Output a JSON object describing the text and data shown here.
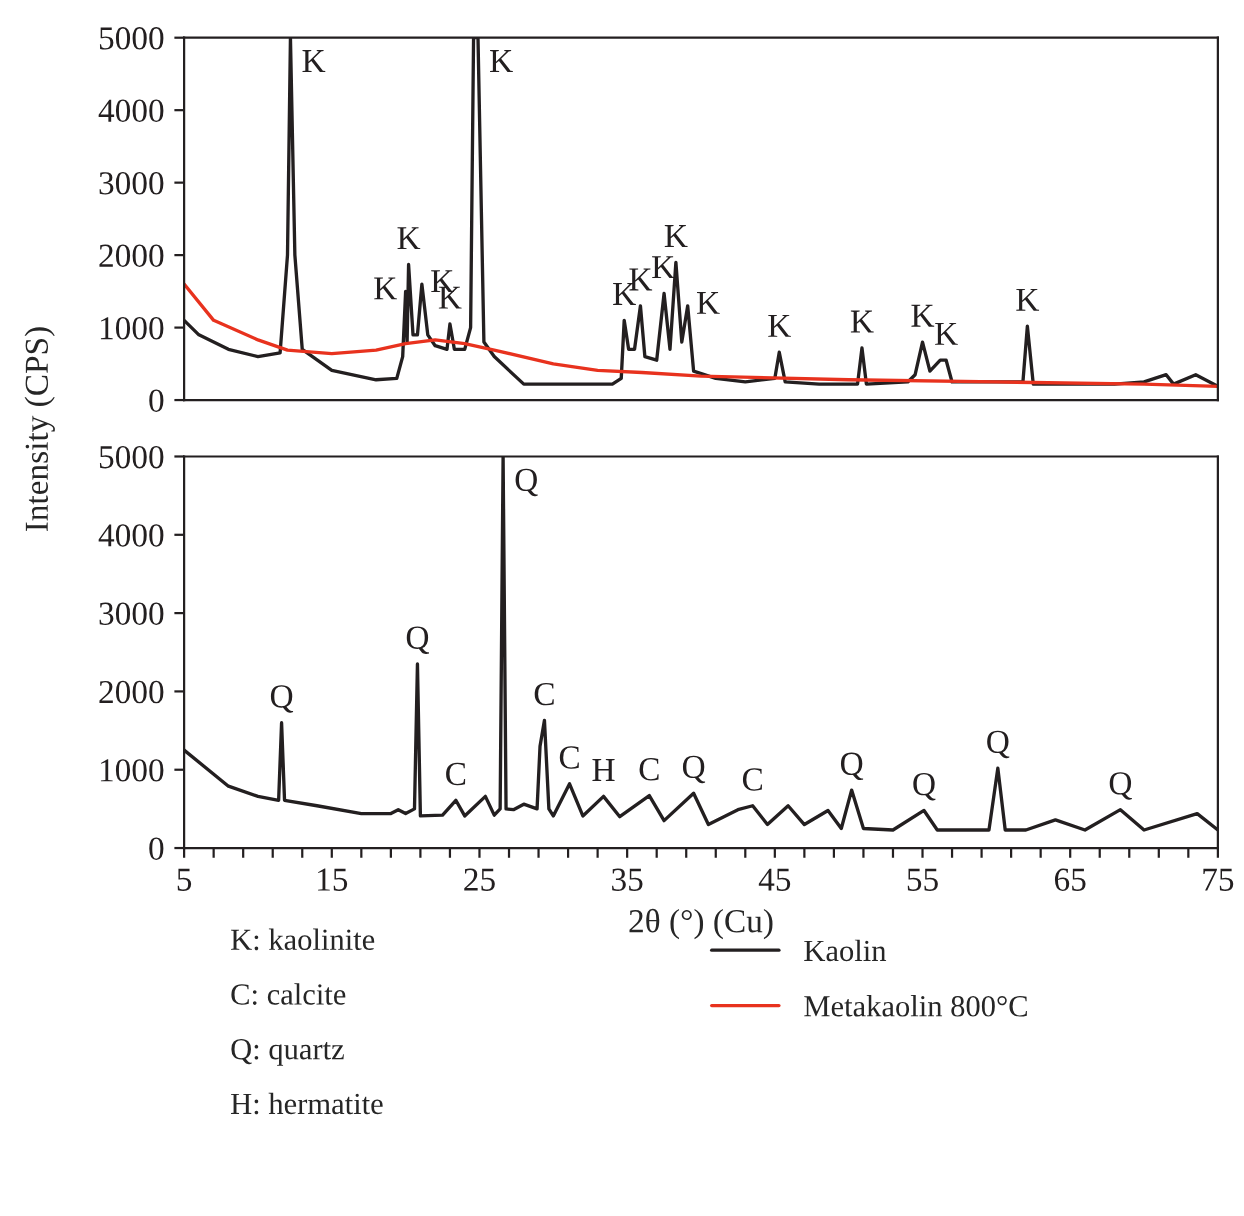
{
  "chart_data": [
    {
      "type": "line",
      "ylim": [
        0,
        5000
      ],
      "yticks": [
        0,
        1000,
        2000,
        3000,
        4000,
        5000
      ],
      "xlim": [
        5,
        75
      ],
      "tick_labels": "y",
      "legend": "bottom",
      "grid": false,
      "marker": "none",
      "line_style": "solid",
      "series": [
        {
          "name": "Kaolin",
          "color": "#231f20",
          "x": [
            5,
            6,
            8,
            10,
            11.5,
            12.0,
            12.2,
            12.5,
            13,
            15,
            18,
            19.4,
            19.8,
            20.0,
            20.1,
            20.2,
            20.5,
            20.8,
            21.1,
            21.5,
            22,
            22.8,
            23.0,
            23.3,
            24.0,
            24.4,
            24.6,
            24.9,
            25.3,
            26,
            28,
            30,
            32,
            34,
            34.6,
            34.8,
            35.1,
            35.5,
            35.9,
            36.2,
            37,
            37.5,
            37.9,
            38.3,
            38.7,
            39.1,
            39.5,
            41,
            43,
            45.0,
            45.3,
            45.7,
            48,
            50.6,
            50.9,
            51.2,
            54,
            54.5,
            55.0,
            55.5,
            56.2,
            56.6,
            57,
            60,
            61.8,
            62.1,
            62.5,
            65,
            68,
            70,
            71.5,
            72,
            73.5,
            75
          ],
          "values": [
            1100,
            900,
            700,
            600,
            650,
            2000,
            5000,
            2000,
            700,
            410,
            280,
            300,
            600,
            1500,
            800,
            1870,
            900,
            900,
            1600,
            900,
            750,
            700,
            1050,
            700,
            700,
            1000,
            5000,
            5000,
            800,
            600,
            220,
            220,
            220,
            220,
            300,
            1100,
            700,
            700,
            1300,
            600,
            550,
            1470,
            700,
            1900,
            800,
            1300,
            400,
            300,
            250,
            300,
            660,
            250,
            220,
            220,
            720,
            220,
            250,
            350,
            800,
            400,
            550,
            550,
            250,
            250,
            250,
            1020,
            220,
            220,
            220,
            250,
            350,
            220,
            350,
            190
          ]
        },
        {
          "name": "Metakaolin 800°C",
          "color": "#e8321e",
          "x": [
            5,
            7,
            10,
            12,
            15,
            18,
            20,
            22,
            24,
            26,
            30,
            33,
            36,
            40,
            50,
            60,
            70,
            75
          ],
          "values": [
            1600,
            1100,
            830,
            690,
            640,
            690,
            780,
            830,
            780,
            690,
            500,
            410,
            380,
            330,
            280,
            250,
            220,
            190
          ]
        }
      ],
      "annotations": [
        {
          "text": "K",
          "x": 12.2,
          "y": 5000
        },
        {
          "text": "K",
          "x": 24.9,
          "y": 5000
        },
        {
          "text": "K",
          "x": 20.0,
          "y": 1500
        },
        {
          "text": "K",
          "x": 20.2,
          "y": 1870
        },
        {
          "text": "K",
          "x": 21.1,
          "y": 1600
        },
        {
          "text": "K",
          "x": 23.0,
          "y": 1050
        },
        {
          "text": "K",
          "x": 34.8,
          "y": 1100
        },
        {
          "text": "K",
          "x": 35.9,
          "y": 1300
        },
        {
          "text": "K",
          "x": 37.5,
          "y": 1470
        },
        {
          "text": "K",
          "x": 38.3,
          "y": 1900
        },
        {
          "text": "K",
          "x": 39.1,
          "y": 1300
        },
        {
          "text": "K",
          "x": 45.3,
          "y": 660
        },
        {
          "text": "K",
          "x": 50.9,
          "y": 720
        },
        {
          "text": "K",
          "x": 55.0,
          "y": 800
        },
        {
          "text": "K",
          "x": 56.6,
          "y": 550
        },
        {
          "text": "K",
          "x": 62.1,
          "y": 1020
        }
      ]
    },
    {
      "type": "line",
      "ylim": [
        0,
        5000
      ],
      "yticks": [
        0,
        1000,
        2000,
        3000,
        4000,
        5000
      ],
      "xlim": [
        5,
        75
      ],
      "ylabel": "Intensity (CPS)",
      "xlabel": "2θ (°) (Cu)",
      "grid": false,
      "marker": "none",
      "line_style": "solid",
      "xticks": [
        5,
        {
          "value": 7,
          "label": null
        },
        {
          "value": 9,
          "label": null
        },
        {
          "value": 11,
          "label": null
        },
        {
          "value": 13,
          "label": null
        },
        15,
        {
          "value": 17,
          "label": null
        },
        {
          "value": 19,
          "label": null
        },
        {
          "value": 21,
          "label": null
        },
        {
          "value": 23,
          "label": null
        },
        25,
        {
          "value": 27,
          "label": null
        },
        {
          "value": 29,
          "label": null
        },
        {
          "value": 31,
          "label": null
        },
        {
          "value": 33,
          "label": null
        },
        35,
        {
          "value": 37,
          "label": null
        },
        {
          "value": 39,
          "label": null
        },
        {
          "value": 41,
          "label": null
        },
        {
          "value": 43,
          "label": null
        },
        45,
        {
          "value": 47,
          "label": null
        },
        {
          "value": 49,
          "label": null
        },
        {
          "value": 51,
          "label": null
        },
        {
          "value": 53,
          "label": null
        },
        55,
        {
          "value": 57,
          "label": null
        },
        {
          "value": 59,
          "label": null
        },
        {
          "value": 61,
          "label": null
        },
        {
          "value": 63,
          "label": null
        },
        65,
        {
          "value": 67,
          "label": null
        },
        {
          "value": 69,
          "label": null
        },
        {
          "value": 71,
          "label": null
        },
        {
          "value": 73,
          "label": null
        },
        75
      ],
      "series": [
        {
          "color": "#231f20",
          "x": [
            5,
            8,
            10,
            11.4,
            11.6,
            11.8,
            14,
            17,
            19,
            19.5,
            20,
            20.6,
            20.8,
            21.0,
            22.5,
            23.4,
            24,
            25.4,
            26.0,
            26.4,
            26.6,
            26.8,
            27.3,
            28,
            28.9,
            29.1,
            29.4,
            29.7,
            30,
            31.1,
            32,
            33.4,
            34.5,
            36.5,
            37.5,
            39.5,
            40.5,
            42.5,
            43.5,
            44.5,
            45.9,
            47,
            48.6,
            49.5,
            50.2,
            51,
            53,
            55.1,
            56,
            59.5,
            60.1,
            60.6,
            62,
            64.0,
            66,
            68.4,
            70,
            73.6,
            75
          ],
          "values": [
            1250,
            790,
            660,
            610,
            1600,
            610,
            540,
            440,
            440,
            490,
            440,
            500,
            2350,
            410,
            420,
            610,
            410,
            660,
            420,
            500,
            5000,
            500,
            490,
            560,
            500,
            1300,
            1630,
            500,
            410,
            820,
            410,
            660,
            400,
            670,
            350,
            700,
            300,
            490,
            540,
            300,
            540,
            300,
            480,
            250,
            740,
            250,
            230,
            480,
            230,
            230,
            1020,
            230,
            230,
            360,
            230,
            490,
            230,
            440,
            230
          ]
        }
      ],
      "annotations": [
        {
          "text": "Q",
          "x": 11.6,
          "y": 1600
        },
        {
          "text": "Q",
          "x": 20.8,
          "y": 2350
        },
        {
          "text": "C",
          "x": 23.4,
          "y": 610
        },
        {
          "text": "Q",
          "x": 26.6,
          "y": 5000
        },
        {
          "text": "C",
          "x": 29.4,
          "y": 1630
        },
        {
          "text": "C",
          "x": 31.1,
          "y": 820
        },
        {
          "text": "H",
          "x": 33.4,
          "y": 660
        },
        {
          "text": "C",
          "x": 36.5,
          "y": 670
        },
        {
          "text": "Q",
          "x": 39.5,
          "y": 700
        },
        {
          "text": "C",
          "x": 43.5,
          "y": 540
        },
        {
          "text": "Q",
          "x": 50.2,
          "y": 740
        },
        {
          "text": "Q",
          "x": 55.1,
          "y": 480
        },
        {
          "text": "Q",
          "x": 60.1,
          "y": 1020
        },
        {
          "text": "Q",
          "x": 68.4,
          "y": 490
        },
        "K: kaolinite",
        "C: calcite",
        "Q: quartz",
        "H: hermatite"
      ]
    }
  ]
}
